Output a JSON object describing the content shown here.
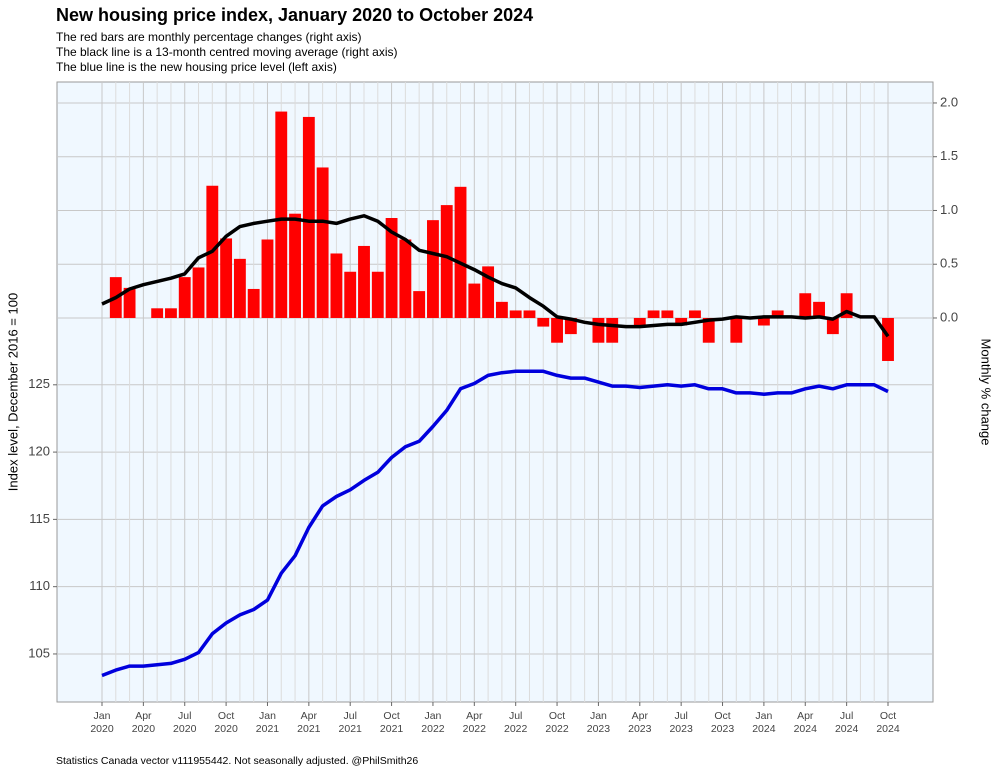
{
  "chart_data": {
    "type": "combo",
    "title": "New housing price index, January 2020 to October 2024",
    "subtitle": [
      "The red bars are monthly percentage changes (right axis)",
      "The black line is a 13-month centred moving average (right axis)",
      "The blue line is the new housing price level (left axis)"
    ],
    "ylabel": "Index level, December 2016 = 100",
    "y2label": "Monthly % change",
    "caption": "Statistics Canada vector v111955442. Not seasonally adjusted. @PhilSmith26",
    "categories": [
      "Jan 2020",
      null,
      null,
      "Apr 2020",
      null,
      null,
      "Jul 2020",
      null,
      null,
      "Oct 2020",
      null,
      null,
      "Jan 2021",
      null,
      null,
      "Apr 2021",
      null,
      null,
      "Jul 2021",
      null,
      null,
      "Oct 2021",
      null,
      null,
      "Jan 2022",
      null,
      null,
      "Apr 2022",
      null,
      null,
      "Jul 2022",
      null,
      null,
      "Oct 2022",
      null,
      null,
      "Jan 2023",
      null,
      null,
      "Apr 2023",
      null,
      null,
      "Jul 2023",
      null,
      null,
      "Oct 2023",
      null,
      null,
      "Jan 2024",
      null,
      null,
      "Apr 2024",
      null,
      null,
      "Jul 2024",
      null,
      null,
      "Oct 2024"
    ],
    "series": [
      {
        "type": "bar",
        "axis": "y2",
        "color": "#ff0000",
        "values": [
          0,
          0.38,
          0.28,
          0,
          0.09,
          0.09,
          0.38,
          0.47,
          1.23,
          0.74,
          0.55,
          0.27,
          0.73,
          1.92,
          0.97,
          1.87,
          1.4,
          0.6,
          0.43,
          0.67,
          0.43,
          0.93,
          0.73,
          0.25,
          0.91,
          1.05,
          1.22,
          0.32,
          0.48,
          0.15,
          0.07,
          0.07,
          -0.08,
          -0.23,
          -0.15,
          0,
          -0.23,
          -0.23,
          0,
          -0.07,
          0.07,
          0.07,
          -0.07,
          0.07,
          -0.23,
          0,
          -0.23,
          0,
          -0.07,
          0.07,
          0,
          0.23,
          0.15,
          -0.15,
          0.23,
          0,
          0,
          -0.4
        ]
      },
      {
        "type": "line",
        "axis": "y2",
        "color": "#000000",
        "values": [
          0.13,
          0.19,
          0.27,
          0.31,
          0.34,
          0.37,
          0.41,
          0.56,
          0.62,
          0.76,
          0.85,
          0.88,
          0.9,
          0.92,
          0.92,
          0.9,
          0.9,
          0.88,
          0.92,
          0.95,
          0.9,
          0.8,
          0.73,
          0.63,
          0.6,
          0.57,
          0.51,
          0.45,
          0.38,
          0.32,
          0.28,
          0.19,
          0.11,
          0.01,
          -0.01,
          -0.04,
          -0.06,
          -0.07,
          -0.08,
          -0.08,
          -0.07,
          -0.06,
          -0.06,
          -0.04,
          -0.02,
          -0.01,
          0.01,
          0,
          0.01,
          0.01,
          0.01,
          0,
          0.01,
          -0.01,
          0.06,
          0.01,
          0.01,
          -0.17
        ]
      },
      {
        "type": "line",
        "axis": "y",
        "color": "#0000dd",
        "values": [
          103.4,
          103.8,
          104.1,
          104.1,
          104.2,
          104.3,
          104.6,
          105.1,
          106.5,
          107.3,
          107.9,
          108.3,
          109.0,
          111.0,
          112.3,
          114.4,
          116.0,
          116.7,
          117.2,
          117.9,
          118.5,
          119.6,
          120.4,
          120.8,
          121.9,
          123.1,
          124.7,
          125.1,
          125.7,
          125.9,
          126.0,
          126.0,
          126.0,
          125.7,
          125.5,
          125.5,
          125.2,
          124.9,
          124.9,
          124.8,
          124.9,
          125.0,
          124.9,
          125.0,
          124.7,
          124.7,
          124.4,
          124.4,
          124.3,
          124.4,
          124.4,
          124.7,
          124.9,
          124.7,
          125.0,
          125.0,
          125.0,
          124.5
        ]
      }
    ],
    "ylim": [
      101.43,
      147.5
    ],
    "yticks": [
      105,
      110,
      115,
      120,
      125
    ],
    "y2lim": [
      -3.572,
      2.195
    ],
    "y2ticks": [
      {
        "value": 0,
        "label": "0.0"
      },
      0.5,
      {
        "value": 1,
        "label": "1.0"
      },
      1.5,
      {
        "value": 2,
        "label": "2.0"
      }
    ],
    "grid": true
  }
}
